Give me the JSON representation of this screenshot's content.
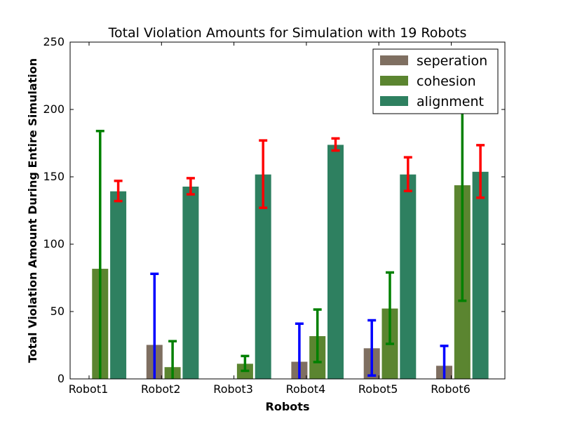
{
  "chart_data": {
    "type": "bar",
    "title": "Total Violation Amounts for Simulation with 19 Robots",
    "xlabel": "Robots",
    "ylabel": "Total Violation Amount During Entire Simulation",
    "categories": [
      "Robot1",
      "Robot2",
      "Robot3",
      "Robot4",
      "Robot5",
      "Robot6"
    ],
    "ylim": [
      0,
      250
    ],
    "yticks": [
      "0",
      "50",
      "100",
      "150",
      "200",
      "250"
    ],
    "series": [
      {
        "name": "seperation",
        "color": "#7f6f61",
        "errorColor": "#0000ff",
        "values": [
          0,
          25.5,
          0,
          13,
          23,
          10
        ],
        "err": [
          0,
          52.5,
          0,
          28,
          20.5,
          14.5
        ]
      },
      {
        "name": "cohesion",
        "color": "#5b8530",
        "errorColor": "#008000",
        "values": [
          82,
          9,
          11.5,
          32,
          52.5,
          144
        ],
        "err": [
          102,
          19,
          5.5,
          19.5,
          26.5,
          86
        ]
      },
      {
        "name": "alignment",
        "color": "#2e8060",
        "errorColor": "#ff0000",
        "values": [
          139.5,
          143,
          152,
          174,
          152,
          154
        ],
        "err": [
          7.5,
          6,
          25,
          4.5,
          12.5,
          19.5
        ]
      }
    ],
    "legend_position": "top-right"
  }
}
